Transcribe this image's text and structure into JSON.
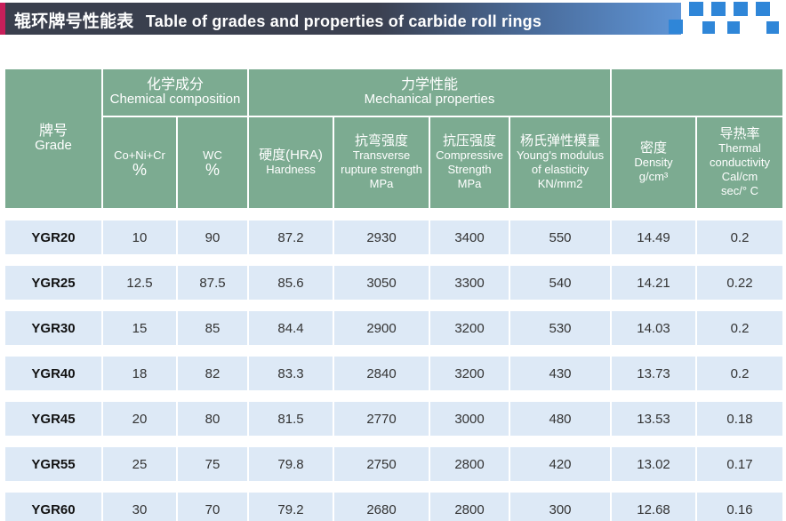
{
  "title": {
    "cn": "辊环牌号性能表",
    "en": "Table of grades and properties of carbide roll rings"
  },
  "colors": {
    "header_bg": "#7cab91",
    "row_bg": "#dde9f6",
    "title_bg": "#3b4050",
    "accent": "#c81f5a",
    "deco": "#2f86d8"
  },
  "header": {
    "grade_cn": "牌号",
    "grade_en": "Grade",
    "chem_cn": "化学成分",
    "chem_en": "Chemical composition",
    "mech_cn": "力学性能",
    "mech_en": "Mechanical properties",
    "conr_label": "Co+Ni+Cr",
    "conr_unit": "%",
    "wc_label": "WC",
    "wc_unit": "%",
    "hardness_cn": "硬度(HRA)",
    "hardness_en": "Hardness",
    "trs_cn": "抗弯强度",
    "trs_en1": "Transverse",
    "trs_en2": "rupture strength",
    "trs_unit": "MPa",
    "comp_cn": "抗压强度",
    "comp_en1": "Compressive",
    "comp_en2": "Strength",
    "comp_unit": "MPa",
    "young_cn": "杨氏弹性模量",
    "young_en1": "Young's modulus",
    "young_en2": "of elasticity",
    "young_unit": "KN/mm2",
    "density_cn": "密度",
    "density_en": "Density",
    "density_unit": "g/cm³",
    "thermal_cn": "导热率",
    "thermal_en1": "Thermal",
    "thermal_en2": "conductivity",
    "thermal_unit1": "Cal/cm",
    "thermal_unit2": "sec/° C"
  },
  "rows": [
    {
      "grade": "YGR20",
      "conr": "10",
      "wc": "90",
      "hardness": "87.2",
      "trs": "2930",
      "comp": "3400",
      "young": "550",
      "density": "14.49",
      "thermal": "0.2"
    },
    {
      "grade": "YGR25",
      "conr": "12.5",
      "wc": "87.5",
      "hardness": "85.6",
      "trs": "3050",
      "comp": "3300",
      "young": "540",
      "density": "14.21",
      "thermal": "0.22"
    },
    {
      "grade": "YGR30",
      "conr": "15",
      "wc": "85",
      "hardness": "84.4",
      "trs": "2900",
      "comp": "3200",
      "young": "530",
      "density": "14.03",
      "thermal": "0.2"
    },
    {
      "grade": "YGR40",
      "conr": "18",
      "wc": "82",
      "hardness": "83.3",
      "trs": "2840",
      "comp": "3200",
      "young": "430",
      "density": "13.73",
      "thermal": "0.2"
    },
    {
      "grade": "YGR45",
      "conr": "20",
      "wc": "80",
      "hardness": "81.5",
      "trs": "2770",
      "comp": "3000",
      "young": "480",
      "density": "13.53",
      "thermal": "0.18"
    },
    {
      "grade": "YGR55",
      "conr": "25",
      "wc": "75",
      "hardness": "79.8",
      "trs": "2750",
      "comp": "2800",
      "young": "420",
      "density": "13.02",
      "thermal": "0.17"
    },
    {
      "grade": "YGR60",
      "conr": "30",
      "wc": "70",
      "hardness": "79.2",
      "trs": "2680",
      "comp": "2800",
      "young": "300",
      "density": "12.68",
      "thermal": "0.16"
    }
  ]
}
